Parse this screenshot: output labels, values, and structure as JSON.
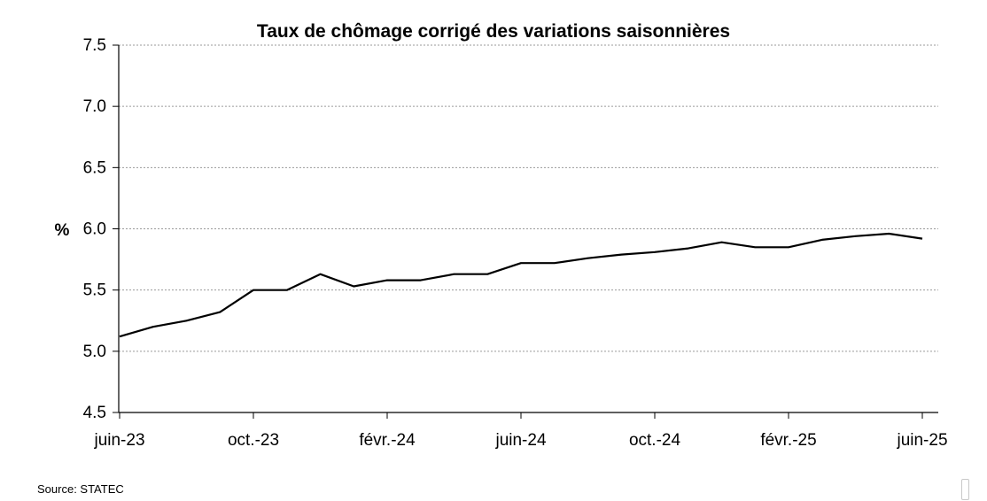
{
  "chart_data": {
    "type": "line",
    "title": "Taux de chômage corrigé des variations saisonnières",
    "ylabel": "%",
    "ylim": [
      4.5,
      7.5
    ],
    "yticks": [
      "4.5",
      "5.0",
      "5.5",
      "6.0",
      "6.5",
      "7.0",
      "7.5"
    ],
    "ytick_values": [
      4.5,
      5.0,
      5.5,
      6.0,
      6.5,
      7.0,
      7.5
    ],
    "grid": "horizontal-dashed",
    "x_categories": [
      "juin-23",
      "juil.-23",
      "août-23",
      "sept.-23",
      "oct.-23",
      "nov.-23",
      "déc.-23",
      "janv.-24",
      "févr.-24",
      "mars-24",
      "avr.-24",
      "mai-24",
      "juin-24",
      "juil.-24",
      "août-24",
      "sept.-24",
      "oct.-24",
      "nov.-24",
      "déc.-24",
      "janv.-25",
      "févr.-25",
      "mars-25",
      "avr.-25",
      "mai-25",
      "juin-25"
    ],
    "xtick_labels": [
      {
        "index": 0,
        "label": "juin-23"
      },
      {
        "index": 4,
        "label": "oct.-23"
      },
      {
        "index": 8,
        "label": "févr.-24"
      },
      {
        "index": 12,
        "label": "juin-24"
      },
      {
        "index": 16,
        "label": "oct.-24"
      },
      {
        "index": 20,
        "label": "févr.-25"
      },
      {
        "index": 24,
        "label": "juin-25"
      }
    ],
    "series": [
      {
        "color": "#000000",
        "values": [
          5.12,
          5.2,
          5.25,
          5.32,
          5.5,
          5.5,
          5.63,
          5.53,
          5.58,
          5.58,
          5.63,
          5.63,
          5.72,
          5.72,
          5.76,
          5.79,
          5.81,
          5.84,
          5.89,
          5.85,
          5.85,
          5.91,
          5.94,
          5.96,
          5.92
        ]
      }
    ]
  },
  "footer": {
    "source": "Source: STATEC"
  }
}
